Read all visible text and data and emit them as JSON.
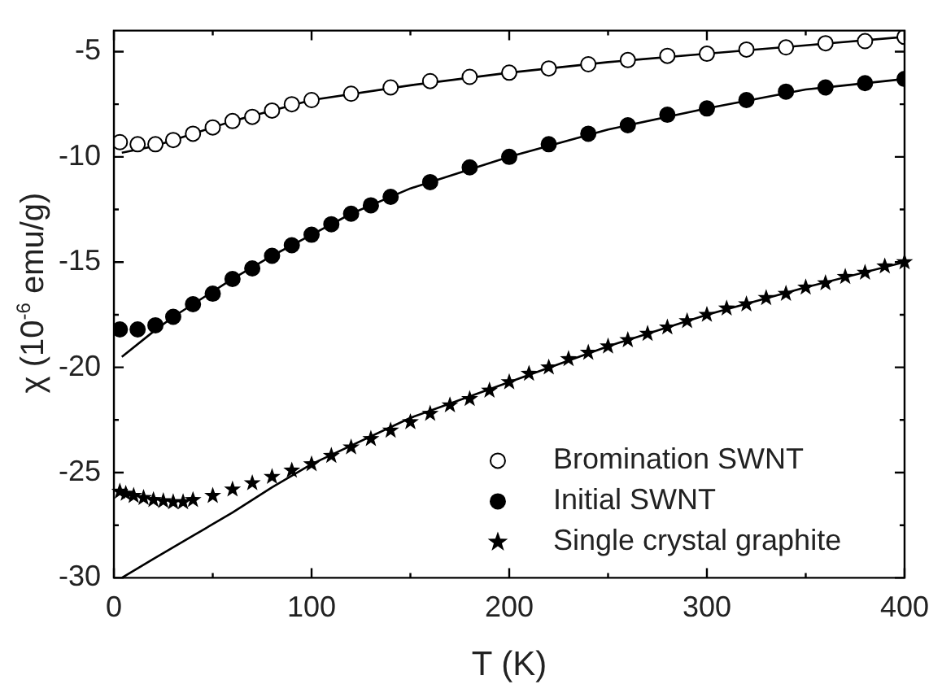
{
  "chart_data": {
    "type": "scatter",
    "xlabel": "T (K)",
    "ylabel": "χ (10$^{-6}$ emu/g)",
    "xlim": [
      0,
      400
    ],
    "xticks": [
      0,
      {
        "value": 50,
        "label": null
      },
      100,
      {
        "value": 150,
        "label": null
      },
      200,
      {
        "value": 250,
        "label": null
      },
      300,
      {
        "value": 350,
        "label": null
      },
      400
    ],
    "ylim": [
      -30,
      -4
    ],
    "yticks": [
      -30,
      {
        "value": -27.5,
        "label": null
      },
      -25,
      {
        "value": -22.5,
        "label": null
      },
      -20,
      {
        "value": -17.5,
        "label": null
      },
      -15,
      {
        "value": -12.5,
        "label": null
      },
      -10,
      {
        "value": -7.5,
        "label": null
      },
      -5
    ],
    "grid": false,
    "legend": "bottom right",
    "series": [
      {
        "name": "Bromination SWNT",
        "color": "#000000",
        "marker": "open circle",
        "x": [
          3,
          12,
          21,
          30,
          40,
          50,
          60,
          70,
          80,
          90,
          100,
          120,
          140,
          160,
          180,
          200,
          220,
          240,
          260,
          280,
          300,
          320,
          340,
          360,
          380,
          400
        ],
        "values": [
          -9.3,
          -9.4,
          -9.4,
          -9.2,
          -8.9,
          -8.6,
          -8.3,
          -8.1,
          -7.8,
          -7.5,
          -7.3,
          -7.0,
          -6.7,
          -6.4,
          -6.2,
          -6.0,
          -5.8,
          -5.6,
          -5.4,
          -5.2,
          -5.1,
          -4.9,
          -4.8,
          -4.6,
          -4.5,
          -4.3
        ]
      },
      {
        "name": "Initial SWNT",
        "color": "#000000",
        "marker": "circle",
        "x": [
          3,
          12,
          21,
          30,
          40,
          50,
          60,
          70,
          80,
          90,
          100,
          110,
          120,
          130,
          140,
          160,
          180,
          200,
          220,
          240,
          260,
          280,
          300,
          320,
          340,
          360,
          380,
          400
        ],
        "values": [
          -18.2,
          -18.2,
          -18.0,
          -17.6,
          -17.0,
          -16.5,
          -15.8,
          -15.3,
          -14.7,
          -14.2,
          -13.7,
          -13.2,
          -12.7,
          -12.3,
          -11.9,
          -11.2,
          -10.5,
          -10.0,
          -9.4,
          -8.9,
          -8.5,
          -8.0,
          -7.7,
          -7.3,
          -6.9,
          -6.7,
          -6.5,
          -6.3
        ]
      },
      {
        "name": "Single crystal graphite",
        "color": "#000000",
        "marker": "star",
        "x": [
          3,
          6,
          10,
          15,
          20,
          25,
          30,
          35,
          40,
          50,
          60,
          70,
          80,
          90,
          100,
          110,
          120,
          130,
          140,
          150,
          160,
          170,
          180,
          190,
          200,
          210,
          220,
          230,
          240,
          250,
          260,
          270,
          280,
          290,
          300,
          310,
          320,
          330,
          340,
          350,
          360,
          370,
          380,
          390,
          400
        ],
        "values": [
          -25.9,
          -26.0,
          -26.1,
          -26.2,
          -26.3,
          -26.35,
          -26.4,
          -26.4,
          -26.3,
          -26.1,
          -25.8,
          -25.5,
          -25.2,
          -24.9,
          -24.6,
          -24.2,
          -23.8,
          -23.4,
          -23.0,
          -22.6,
          -22.2,
          -21.8,
          -21.5,
          -21.1,
          -20.7,
          -20.3,
          -20.0,
          -19.6,
          -19.3,
          -19.0,
          -18.7,
          -18.4,
          -18.1,
          -17.8,
          -17.5,
          -17.2,
          -17.0,
          -16.7,
          -16.5,
          -16.2,
          -16.0,
          -15.7,
          -15.5,
          -15.2,
          -15.0
        ]
      },
      {
        "type": "line",
        "color": "#000000",
        "marker": "none",
        "x": [
          4,
          20,
          40,
          60,
          80,
          100,
          150,
          200,
          250,
          300,
          350,
          400
        ],
        "values": [
          -9.8,
          -9.5,
          -8.9,
          -8.3,
          -7.8,
          -7.3,
          -6.6,
          -6.0,
          -5.5,
          -5.1,
          -4.7,
          -4.3
        ]
      },
      {
        "type": "line",
        "color": "#000000",
        "marker": "none",
        "x": [
          4,
          20,
          30,
          40,
          60,
          80,
          100,
          120,
          150,
          200,
          250,
          300,
          350,
          400
        ],
        "values": [
          -19.5,
          -18.3,
          -17.6,
          -17.0,
          -15.8,
          -14.7,
          -13.7,
          -12.7,
          -11.5,
          -10.0,
          -8.7,
          -7.7,
          -6.8,
          -6.3
        ]
      },
      {
        "type": "line",
        "color": "#000000",
        "marker": "none",
        "x": [
          4,
          20,
          40,
          60,
          80,
          100,
          150,
          200,
          250,
          300,
          350,
          400
        ],
        "values": [
          -30.0,
          -29.1,
          -28.0,
          -26.9,
          -25.7,
          -24.6,
          -22.4,
          -20.7,
          -19.0,
          -17.5,
          -16.2,
          -15.0
        ]
      }
    ]
  }
}
